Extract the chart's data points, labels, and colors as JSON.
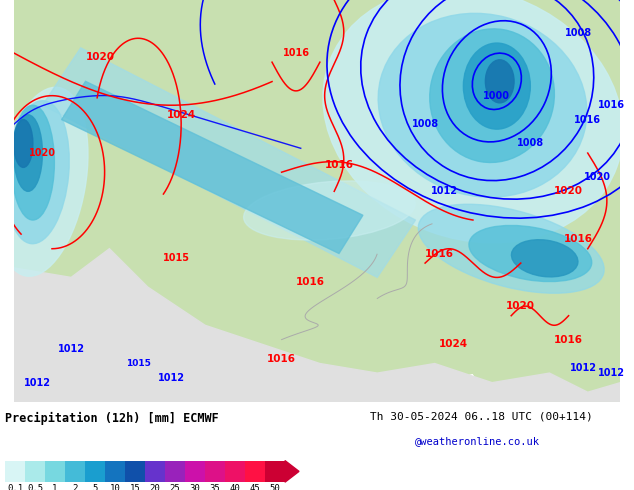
{
  "title": "Precipitation (12h) [mm] ECMWF",
  "date_text": "Th 30-05-2024 06..18 UTC (00+114)",
  "credit_text": "@weatheronline.co.uk",
  "colorbar_values": [
    0.1,
    0.5,
    1,
    2,
    5,
    10,
    15,
    20,
    25,
    30,
    35,
    40,
    45,
    50
  ],
  "colorbar_colors": [
    "#d8f5f5",
    "#aaeaea",
    "#77d8e0",
    "#44bbd8",
    "#1a9ecf",
    "#1474bf",
    "#1050aa",
    "#6633cc",
    "#9922bb",
    "#cc11aa",
    "#dd1188",
    "#ee1166",
    "#ff1144",
    "#cc0033"
  ],
  "bg_color": "#ffffff",
  "fig_width": 6.34,
  "fig_height": 4.9,
  "dpi": 100,
  "map_colors": {
    "land_light": "#c8e0b0",
    "land_gray": "#d8d8d8",
    "sea_gray": "#e8e8e8",
    "coast": "#888888",
    "precip_vlight": "#d0f0f0",
    "precip_light": "#a0e0e8",
    "precip_med": "#60c0d8",
    "precip_dark": "#2090c0",
    "precip_vdark": "#1060a0"
  }
}
